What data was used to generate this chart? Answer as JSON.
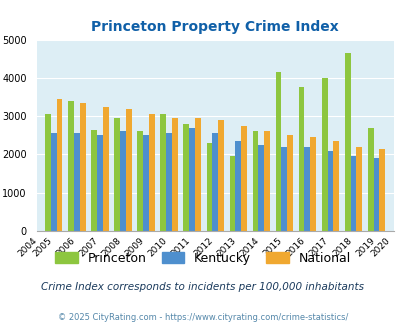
{
  "title": "Princeton Property Crime Index",
  "years": [
    2004,
    2005,
    2006,
    2007,
    2008,
    2009,
    2010,
    2011,
    2012,
    2013,
    2014,
    2015,
    2016,
    2017,
    2018,
    2019,
    2020
  ],
  "princeton": [
    null,
    3050,
    3400,
    2650,
    2950,
    2600,
    3050,
    2800,
    2300,
    1950,
    2600,
    4150,
    3750,
    4000,
    4650,
    2700,
    null
  ],
  "kentucky": [
    null,
    2550,
    2550,
    2500,
    2600,
    2500,
    2550,
    2700,
    2550,
    2350,
    2250,
    2200,
    2200,
    2100,
    1950,
    1900,
    null
  ],
  "national": [
    null,
    3450,
    3350,
    3250,
    3200,
    3050,
    2950,
    2950,
    2900,
    2750,
    2600,
    2500,
    2450,
    2350,
    2200,
    2150,
    null
  ],
  "princeton_color": "#8dc63f",
  "kentucky_color": "#4e8fce",
  "national_color": "#f0a830",
  "bg_color": "#ddeef5",
  "title_color": "#1060a8",
  "ylim": [
    0,
    5000
  ],
  "yticks": [
    0,
    1000,
    2000,
    3000,
    4000,
    5000
  ],
  "legend_labels": [
    "Princeton",
    "Kentucky",
    "National"
  ],
  "footnote1": "Crime Index corresponds to incidents per 100,000 inhabitants",
  "footnote2": "© 2025 CityRating.com - https://www.cityrating.com/crime-statistics/"
}
